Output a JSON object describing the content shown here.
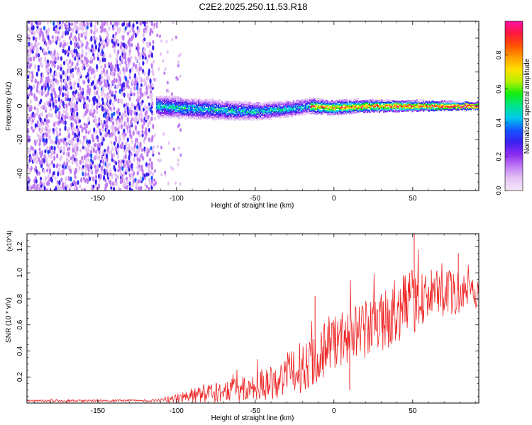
{
  "figure_title": "C2E2.2025.250.11.53.R18",
  "chart_data": [
    {
      "type": "heatmap",
      "title": "C2E2.2025.250.11.53.R18",
      "xlabel": "Height of straight line (km)",
      "ylabel": "Frequency (Hz)",
      "xlim": [
        -195,
        92
      ],
      "ylim": [
        -50,
        50
      ],
      "xticks": [
        -150,
        -100,
        -50,
        0,
        50
      ],
      "yticks": [
        -40,
        -20,
        0,
        20,
        40
      ],
      "noise_region_end_km": -115,
      "sparse_region_end_km": -98,
      "signal_center_hz": [
        {
          "x": -113,
          "y": 0
        },
        {
          "x": -90,
          "y": -1.5
        },
        {
          "x": -70,
          "y": -2.5
        },
        {
          "x": -50,
          "y": -3
        },
        {
          "x": -30,
          "y": -2
        },
        {
          "x": -15,
          "y": 0
        },
        {
          "x": 0,
          "y": -1
        },
        {
          "x": 20,
          "y": 0
        },
        {
          "x": 50,
          "y": 0
        },
        {
          "x": 92,
          "y": 0
        }
      ],
      "colorbar": {
        "label": "Normalized spectral amplitude",
        "range": [
          0,
          1
        ],
        "ticks": [
          "0.0",
          "0.2",
          "0.4",
          "0.6",
          "0.8"
        ],
        "tick_values": [
          0.0,
          0.2,
          0.4,
          0.6,
          0.8
        ],
        "colors": [
          "#f4e6f8",
          "#e5c4f4",
          "#c07cf4",
          "#8a2cf0",
          "#3a20f0",
          "#1455ff",
          "#00c8ee",
          "#00e48c",
          "#10ee10",
          "#b4f000",
          "#ffe000",
          "#ffa000",
          "#ff5000",
          "#ff1840",
          "#ff10a0"
        ]
      }
    },
    {
      "type": "line",
      "xlabel": "Height of straight line (km)",
      "ylabel": "SNR (10 * v/v)",
      "y_multiplier": "(x10^4)",
      "xlim": [
        -195,
        92
      ],
      "ylim": [
        0,
        1.3
      ],
      "xticks": [
        -150,
        -100,
        -50,
        0,
        50
      ],
      "yticks": [
        0.2,
        0.4,
        0.6,
        0.8,
        1.0,
        1.2
      ],
      "ytick_labels": [
        "0.2",
        "0.4",
        "0.6",
        "0.8",
        "1.0",
        "1.2"
      ],
      "color": "#ee2222",
      "envelope": [
        {
          "x": -195,
          "mean": 0.018,
          "amp": 0.008
        },
        {
          "x": -112,
          "mean": 0.02,
          "amp": 0.01
        },
        {
          "x": -105,
          "mean": 0.03,
          "amp": 0.03
        },
        {
          "x": -90,
          "mean": 0.06,
          "amp": 0.06
        },
        {
          "x": -75,
          "mean": 0.09,
          "amp": 0.09
        },
        {
          "x": -55,
          "mean": 0.12,
          "amp": 0.1
        },
        {
          "x": -35,
          "mean": 0.2,
          "amp": 0.15
        },
        {
          "x": -20,
          "mean": 0.3,
          "amp": 0.2
        },
        {
          "x": -5,
          "mean": 0.45,
          "amp": 0.22
        },
        {
          "x": 10,
          "mean": 0.55,
          "amp": 0.22
        },
        {
          "x": 25,
          "mean": 0.6,
          "amp": 0.23
        },
        {
          "x": 40,
          "mean": 0.72,
          "amp": 0.23
        },
        {
          "x": 50,
          "mean": 0.8,
          "amp": 0.25
        },
        {
          "x": 60,
          "mean": 0.85,
          "amp": 0.2
        },
        {
          "x": 75,
          "mean": 0.86,
          "amp": 0.18
        },
        {
          "x": 92,
          "mean": 0.87,
          "amp": 0.12
        }
      ],
      "annotated_points": [
        {
          "x": 10,
          "y": 0.1
        },
        {
          "x": 48,
          "y": 1.0
        },
        {
          "x": 51,
          "y": 1.3
        },
        {
          "x": 79,
          "y": 1.15
        },
        {
          "x": -12,
          "y": 0.82
        }
      ]
    }
  ]
}
